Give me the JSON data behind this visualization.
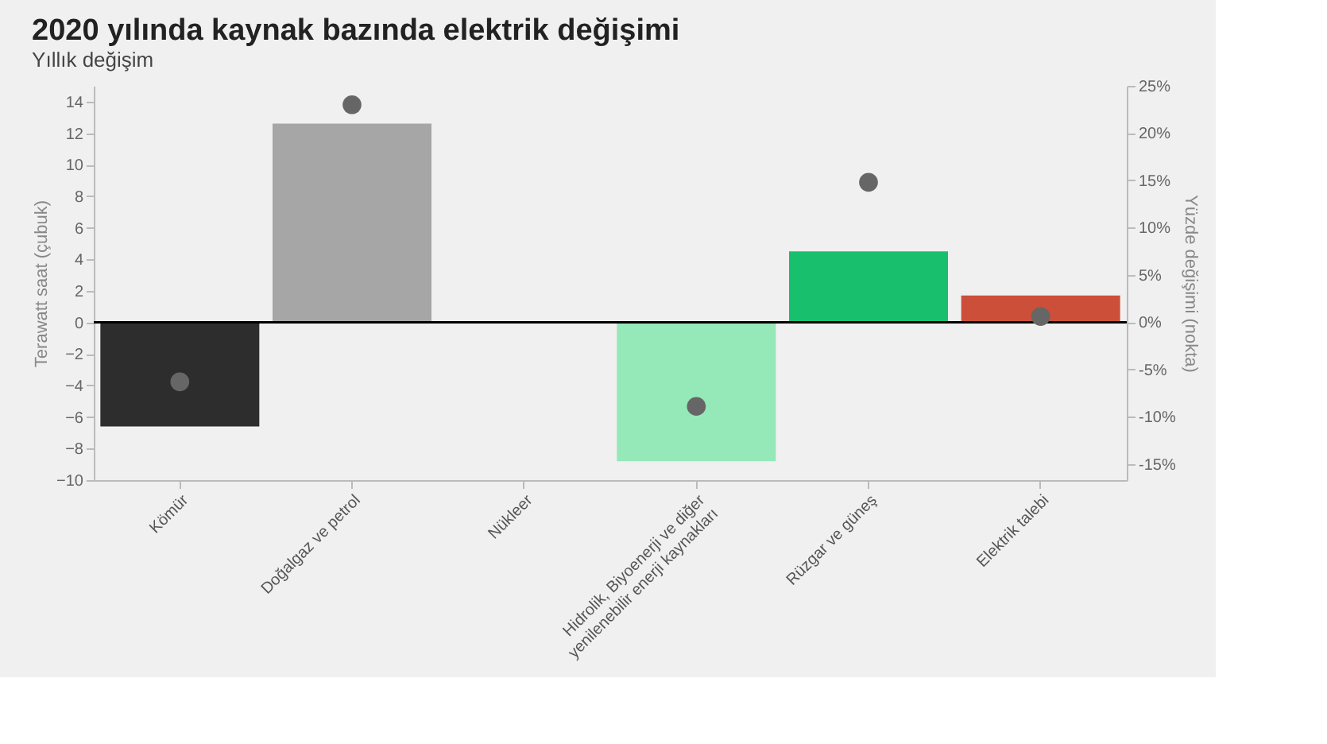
{
  "chart_data": {
    "type": "bar",
    "title": "2020 yılında kaynak bazında elektrik değişimi",
    "subtitle": "Yıllık değişim",
    "ylabel": "Terawatt saat (çubuk)",
    "y2label": "Yüzde değişimi (nokta)",
    "categories": [
      "Kömür",
      "Doğalgaz ve petrol",
      "Nükleer",
      "Hidrolik, Biyoenerji ve diğer yenilenebilir enerji kaynakları",
      "Rüzgar ve güneş",
      "Elektrik talebi"
    ],
    "series": [
      {
        "values": [
          -6.6,
          12.6,
          0,
          -8.8,
          4.5,
          1.7
        ],
        "colors": [
          "#2d2d2d",
          "#a6a6a6",
          "#a6a6a6",
          "#95e8b8",
          "#18c06e",
          "#cc4f3a"
        ]
      },
      {
        "type": "scatter",
        "axis": "y2",
        "color": "#666666",
        "values": [
          -6.3,
          23.0,
          null,
          -8.9,
          14.8,
          0.6
        ]
      }
    ],
    "ylim": [
      -10,
      15
    ],
    "yticks": [
      -10,
      -8,
      -6,
      -4,
      -2,
      0,
      2,
      4,
      6,
      8,
      10,
      12,
      14
    ],
    "y2lim": [
      -16.7,
      25
    ],
    "y2ticks": [
      {
        "value": -15,
        "label": "-15%"
      },
      {
        "value": -10,
        "label": "-10%"
      },
      {
        "value": -5,
        "label": "-5%"
      },
      {
        "value": 0,
        "label": "0%"
      },
      {
        "value": 5,
        "label": "5%"
      },
      {
        "value": 10,
        "label": "10%"
      },
      {
        "value": 15,
        "label": "15%"
      },
      {
        "value": 20,
        "label": "20%"
      },
      {
        "value": 25,
        "label": "25%"
      }
    ],
    "ref_lines": [
      {
        "axis": "y",
        "value": 0,
        "color": "#000000"
      }
    ],
    "marker": "circle",
    "grid": false
  }
}
